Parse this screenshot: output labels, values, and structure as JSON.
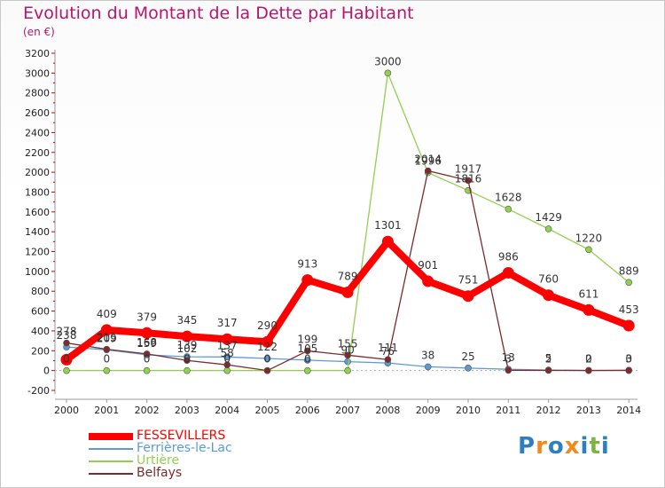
{
  "header": {
    "title": "Evolution du Montant de la Dette par Habitant",
    "subtitle": "(en €)"
  },
  "logo": {
    "text": "Proxiti",
    "colors": [
      "#2e7fc2",
      "#f08a1c",
      "#2e7fc2",
      "#f08a1c",
      "#2e7fc2",
      "#7cb342",
      "#2e7fc2"
    ]
  },
  "chart_data": {
    "type": "line",
    "categories": [
      "2000",
      "2001",
      "2002",
      "2003",
      "2004",
      "2005",
      "2006",
      "2007",
      "2008",
      "2009",
      "2010",
      "2011",
      "2012",
      "2013",
      "2014"
    ],
    "y_ticks": [
      "-200",
      "0",
      "200",
      "400",
      "600",
      "800",
      "1000",
      "1200",
      "1400",
      "1600",
      "1800",
      "2000",
      "2200",
      "2400",
      "2600",
      "2800",
      "3000",
      "3200"
    ],
    "ylim": [
      -200,
      3200
    ],
    "grid": false,
    "legend_position": "bottom-left",
    "series": [
      {
        "name": "Ferrières-le-Lac",
        "color": "#5b9bd5",
        "values": [
          238,
          209,
          159,
          139,
          137,
          122,
          105,
          90,
          76,
          38,
          25,
          13,
          5,
          2,
          0
        ],
        "labels": [
          "238",
          "209",
          "159",
          "139",
          "137",
          "122",
          "105",
          "90",
          "76",
          "38",
          "25",
          "13",
          "5",
          "2",
          "0"
        ]
      },
      {
        "name": "Urtière",
        "color": "#92d050",
        "values": [
          0,
          0,
          0,
          0,
          0,
          0,
          0,
          0,
          3000,
          1996,
          1816,
          1628,
          1429,
          1220,
          889
        ],
        "labels": [
          "0",
          "0",
          "0",
          "0",
          "0",
          "0",
          "0",
          "",
          "3000",
          "1996",
          "1816",
          "1628",
          "1429",
          "1220",
          "889"
        ]
      },
      {
        "name": "Belfays",
        "color": "#7b2c2c",
        "values": [
          278,
          215,
          168,
          102,
          58,
          0,
          199,
          155,
          111,
          2014,
          1917,
          3,
          2,
          0,
          3
        ],
        "labels": [
          "278",
          "215",
          "168",
          "102",
          "58",
          "",
          "199",
          "155",
          "111",
          "2014",
          "1917",
          "3",
          "2",
          "0",
          "3"
        ]
      },
      {
        "name": "FESSEVILLERS",
        "color": "#ff0000",
        "values": [
          110,
          409,
          379,
          345,
          317,
          290,
          913,
          789,
          1301,
          901,
          751,
          986,
          760,
          611,
          453
        ],
        "labels": [
          "",
          "409",
          "379",
          "345",
          "317",
          "290",
          "913",
          "789",
          "1301",
          "901",
          "751",
          "986",
          "760",
          "611",
          "453"
        ]
      }
    ],
    "legend": [
      {
        "name": "FESSEVILLERS",
        "color": "#ff0000"
      },
      {
        "name": "Ferrières-le-Lac",
        "color": "#5b9bd5"
      },
      {
        "name": "Urtière",
        "color": "#92d050"
      },
      {
        "name": "Belfays",
        "color": "#7b2c2c"
      }
    ]
  }
}
